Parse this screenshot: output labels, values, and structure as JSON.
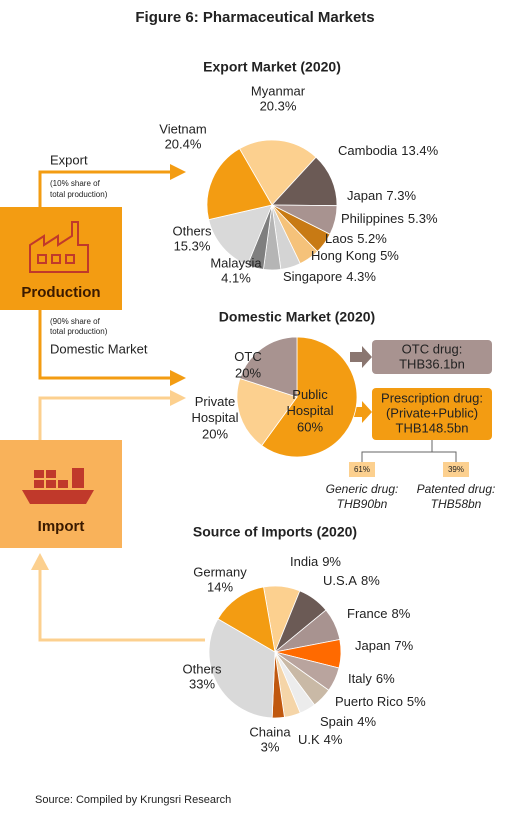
{
  "title": "Figure 6: Pharmaceutical Markets",
  "source": "Source: Compiled by Krungsri Research",
  "flow": {
    "production": "Production",
    "import": "Import",
    "export_label": "Export",
    "export_note": [
      "(10% share of",
      "total production)"
    ],
    "domestic_note": [
      "(90% share of",
      "total production)"
    ],
    "domestic_label": "Domestic Market"
  },
  "otc_box": [
    "OTC drug:",
    "THB36.1bn"
  ],
  "prescription_box": [
    "Prescription drug:",
    "(Private+Public)",
    "THB148.5bn"
  ],
  "generic": {
    "share": "61%",
    "label": [
      "Generic drug:",
      "THB90bn"
    ]
  },
  "patented": {
    "share": "39%",
    "label": [
      "Patented drug:",
      "THB58bn"
    ]
  },
  "chart_data": [
    {
      "type": "pie",
      "title": "Export Market (2020)",
      "categories": [
        "Myanmar",
        "Cambodia",
        "Japan",
        "Philippines",
        "Laos",
        "Hong Kong",
        "Singapore",
        "Malaysia",
        "Others",
        "Vietnam"
      ],
      "values": [
        20.3,
        13.4,
        7.3,
        5.3,
        5.2,
        5,
        4.3,
        4.1,
        15.3,
        20.4
      ],
      "value_labels": [
        "20.3%",
        "13.4%",
        "7.3%",
        "5.3%",
        "5.2%",
        "5%",
        "4.3%",
        "4.1%",
        "15.3%",
        "20.4%"
      ],
      "colors": [
        "#fcd08f",
        "#6b5a55",
        "#a89390",
        "#c87a14",
        "#f5c27a",
        "#d4d4d4",
        "#b5b5b5",
        "#7f7f7f",
        "#d9d9d9",
        "#f39c12"
      ]
    },
    {
      "type": "pie",
      "title": "Domestic Market (2020)",
      "categories": [
        "Public\nHospital",
        "Private\nHospital",
        "OTC"
      ],
      "values": [
        60,
        20,
        20
      ],
      "value_labels": [
        "60%",
        "20%",
        "20%"
      ],
      "colors": [
        "#f39c12",
        "#fcd08f",
        "#a89390"
      ]
    },
    {
      "type": "pie",
      "title": "Source of Imports (2020)",
      "categories": [
        "India",
        "U.S.A",
        "France",
        "Japan",
        "Italy",
        "Puerto Rico",
        "Spain",
        "U.K",
        "Chaina",
        "Others",
        "Germany"
      ],
      "values": [
        9,
        8,
        8,
        7,
        6,
        5,
        4,
        4,
        3,
        33,
        14
      ],
      "value_labels": [
        "9%",
        "8%",
        "8%",
        "7%",
        "6%",
        "5%",
        "4%",
        "4%",
        "3%",
        "33%",
        "14%"
      ],
      "colors": [
        "#fcd08f",
        "#6b5a55",
        "#a89390",
        "#ff6a00",
        "#b9a49e",
        "#c9b9a6",
        "#ececec",
        "#f5d5a8",
        "#c0580f",
        "#d9d9d9",
        "#f39c12"
      ]
    }
  ]
}
